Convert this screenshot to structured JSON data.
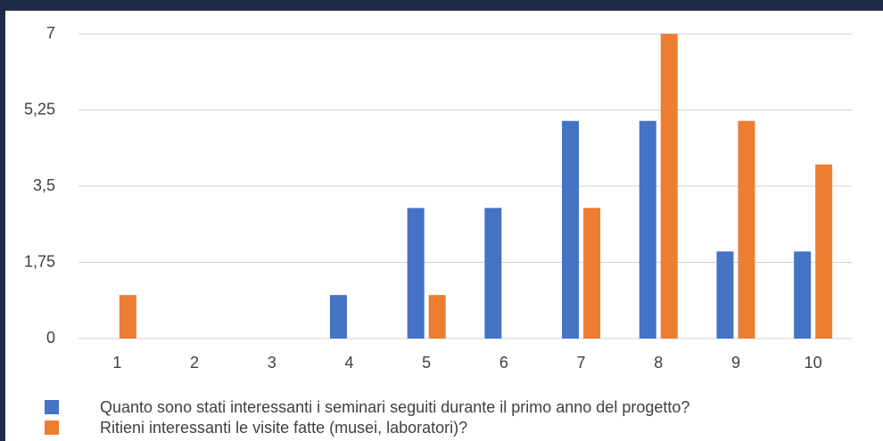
{
  "chart_data": {
    "type": "bar",
    "categories": [
      "1",
      "2",
      "3",
      "4",
      "5",
      "6",
      "7",
      "8",
      "9",
      "10"
    ],
    "series": [
      {
        "name": "Quanto sono stati interessanti i seminari seguiti durante il primo anno del progetto?",
        "color": "#4472c4",
        "values": [
          0,
          0,
          0,
          1,
          3,
          3,
          5,
          5,
          2,
          2
        ]
      },
      {
        "name": "Ritieni interessanti le visite fatte (musei, laboratori)?",
        "color": "#ed7d31",
        "values": [
          1,
          0,
          0,
          0,
          1,
          0,
          3,
          7,
          5,
          4
        ]
      }
    ],
    "ylim": [
      0,
      7
    ],
    "yticks": [
      0,
      {
        "value": 1.75,
        "label": "1,75"
      },
      {
        "value": 3.5,
        "label": "3,5"
      },
      {
        "value": 5.25,
        "label": "5,25"
      },
      7
    ],
    "grid": true
  }
}
